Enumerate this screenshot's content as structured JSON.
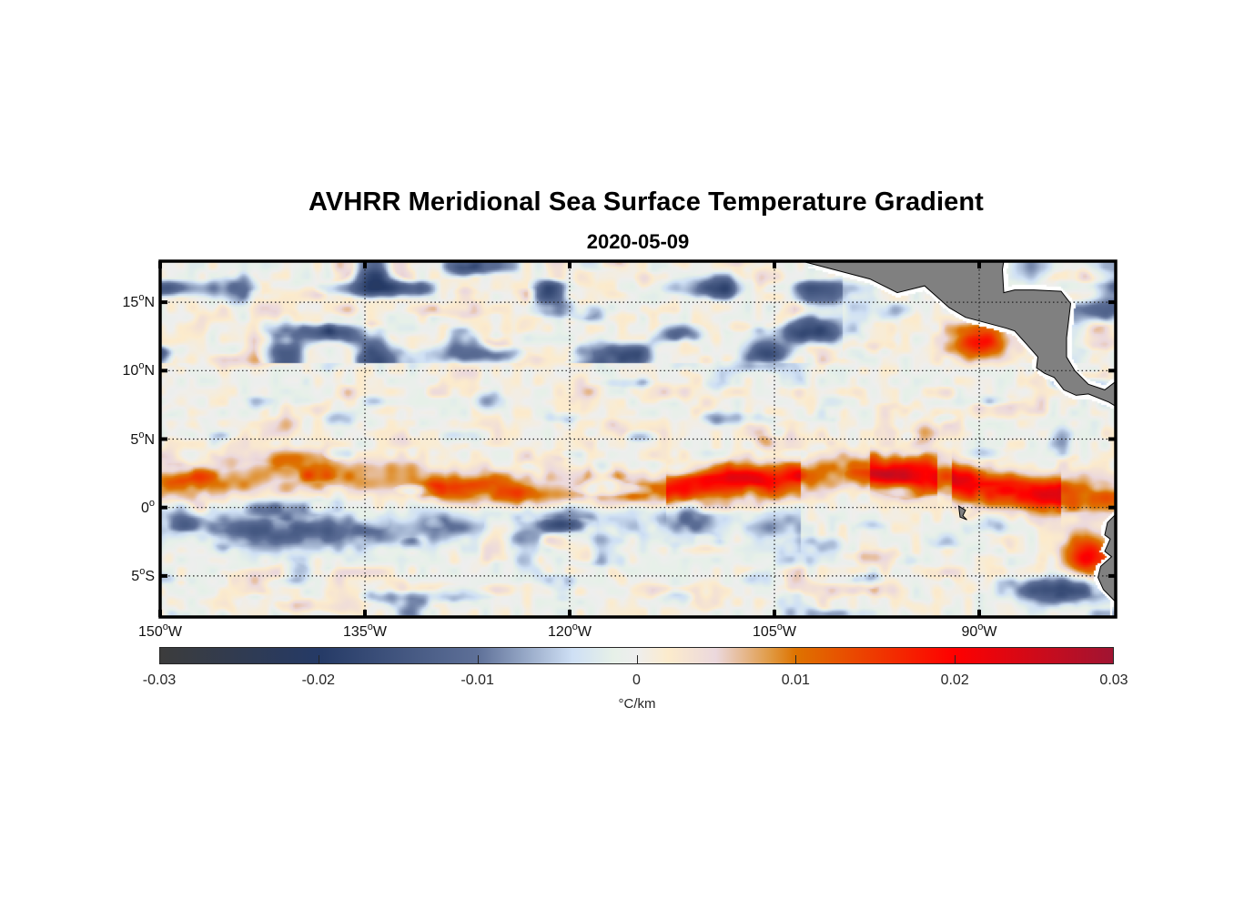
{
  "title": "AVHRR Meridional Sea Surface Temperature Gradient",
  "subtitle": "2020-05-09",
  "map": {
    "projection": "equirectangular",
    "lon_range": [
      -150,
      -80
    ],
    "lat_range": [
      -8,
      18
    ],
    "land_color": "#808080",
    "ocean_missing_color": "#ffffff",
    "grid": "dotted",
    "lat_ticks": [
      {
        "value": 15,
        "label": "15",
        "suffix": "N"
      },
      {
        "value": 10,
        "label": "10",
        "suffix": "N"
      },
      {
        "value": 5,
        "label": "5",
        "suffix": "N"
      },
      {
        "value": 0,
        "label": "0",
        "suffix": ""
      },
      {
        "value": -5,
        "label": "5",
        "suffix": "S"
      }
    ],
    "lon_ticks": [
      {
        "value": -150,
        "label": "150",
        "suffix": "W"
      },
      {
        "value": -135,
        "label": "135",
        "suffix": "W"
      },
      {
        "value": -120,
        "label": "120",
        "suffix": "W"
      },
      {
        "value": -105,
        "label": "105",
        "suffix": "W"
      },
      {
        "value": -90,
        "label": "90",
        "suffix": "W"
      }
    ],
    "features": [
      {
        "name": "equatorial-warm-front",
        "sign": "positive",
        "description": "band of positive gradient ~1-3N across basin, strongest near 110-100W and 95-85W",
        "peak": 0.025
      },
      {
        "name": "south-equatorial-negative-band",
        "sign": "negative",
        "description": "band of negative gradient ~0-2S from 150W to 105W",
        "peak": -0.015
      },
      {
        "name": "north-pacific-negative-eddies",
        "sign": "negative",
        "description": "wavy negative features 11-18N west of 105W",
        "peak": -0.022
      },
      {
        "name": "panama-bight-positive",
        "sign": "positive",
        "description": "strong positive patch near 12N 90W",
        "peak": 0.02
      },
      {
        "name": "peru-coast-positive",
        "sign": "positive",
        "description": "positive patch 2-6S near 83-81W",
        "peak": 0.02
      }
    ]
  },
  "colorbar": {
    "min": -0.03,
    "max": 0.03,
    "ticks": [
      -0.03,
      -0.02,
      -0.01,
      0,
      0.01,
      0.02,
      0.03
    ],
    "tick_labels": [
      "-0.03",
      "-0.02",
      "-0.01",
      "0",
      "0.01",
      "0.02",
      "0.03"
    ],
    "unit": "°C/km",
    "stops": [
      {
        "value": -0.03,
        "color": "#3c3c3c"
      },
      {
        "value": -0.02,
        "color": "#253a66"
      },
      {
        "value": -0.01,
        "color": "#5e7098"
      },
      {
        "value": -0.004,
        "color": "#cfe0f5"
      },
      {
        "value": -0.0015,
        "color": "#e6f0e8"
      },
      {
        "value": 0,
        "color": "#eeeeee"
      },
      {
        "value": 0.002,
        "color": "#fcebcc"
      },
      {
        "value": 0.005,
        "color": "#ebd8dd"
      },
      {
        "value": 0.0085,
        "color": "#e09840"
      },
      {
        "value": 0.01,
        "color": "#de7300"
      },
      {
        "value": 0.02,
        "color": "#ff0000"
      },
      {
        "value": 0.03,
        "color": "#a01432"
      }
    ]
  }
}
